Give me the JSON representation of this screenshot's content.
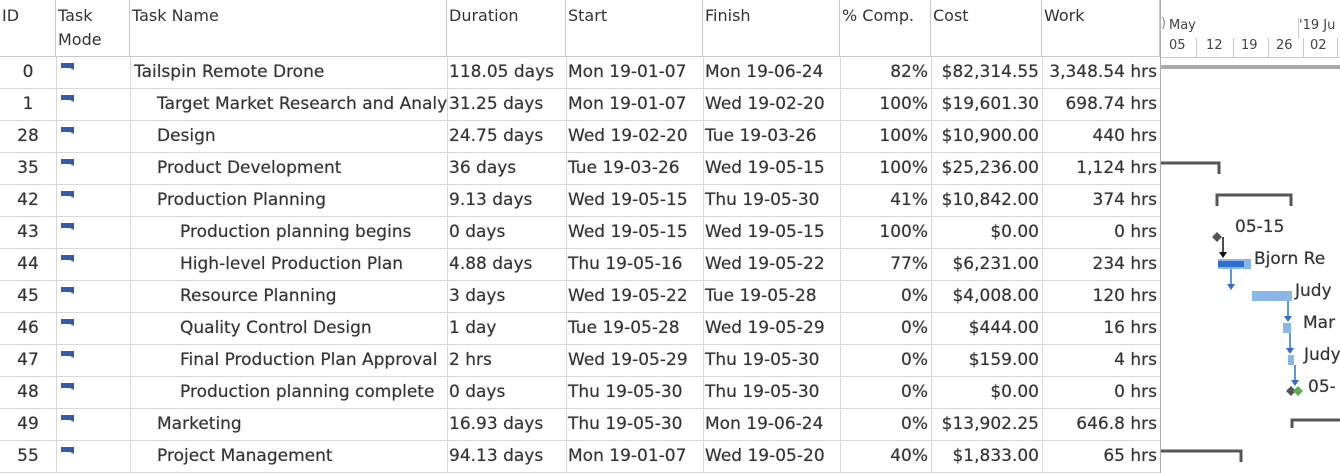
{
  "columns": {
    "id": "ID",
    "mode": "Task Mode",
    "name": "Task Name",
    "duration": "Duration",
    "start": "Start",
    "finish": "Finish",
    "pct": "% Comp.",
    "cost": "Cost",
    "work": "Work"
  },
  "timeline": {
    "month_may": "May",
    "month_next": "'19 Ju",
    "days": [
      "05",
      "12",
      "19",
      "26",
      "02"
    ]
  },
  "rows": [
    {
      "id": "0",
      "name": "Tailspin Remote Drone",
      "level": 0,
      "duration": "118.05 days",
      "start": "Mon 19-01-07",
      "finish": "Mon 19-06-24",
      "pct": "82%",
      "cost": "$82,314.55",
      "work": "3,348.54 hrs"
    },
    {
      "id": "1",
      "name": "Target Market Research and Analysis",
      "level": 1,
      "duration": "31.25 days",
      "start": "Mon 19-01-07",
      "finish": "Wed 19-02-20",
      "pct": "100%",
      "cost": "$19,601.30",
      "work": "698.74 hrs"
    },
    {
      "id": "28",
      "name": "Design",
      "level": 1,
      "duration": "24.75 days",
      "start": "Wed 19-02-20",
      "finish": "Tue 19-03-26",
      "pct": "100%",
      "cost": "$10,900.00",
      "work": "440 hrs"
    },
    {
      "id": "35",
      "name": "Product Development",
      "level": 1,
      "duration": "36 days",
      "start": "Tue 19-03-26",
      "finish": "Wed 19-05-15",
      "pct": "100%",
      "cost": "$25,236.00",
      "work": "1,124 hrs"
    },
    {
      "id": "42",
      "name": "Production Planning",
      "level": 1,
      "duration": "9.13 days",
      "start": "Wed 19-05-15",
      "finish": "Thu 19-05-30",
      "pct": "41%",
      "cost": "$10,842.00",
      "work": "374 hrs"
    },
    {
      "id": "43",
      "name": "Production planning begins",
      "level": 2,
      "duration": "0 days",
      "start": "Wed 19-05-15",
      "finish": "Wed 19-05-15",
      "pct": "100%",
      "cost": "$0.00",
      "work": "0 hrs"
    },
    {
      "id": "44",
      "name": "High-level Production Plan",
      "level": 2,
      "duration": "4.88 days",
      "start": "Thu 19-05-16",
      "finish": "Wed 19-05-22",
      "pct": "77%",
      "cost": "$6,231.00",
      "work": "234 hrs"
    },
    {
      "id": "45",
      "name": "Resource Planning",
      "level": 2,
      "duration": "3 days",
      "start": "Wed 19-05-22",
      "finish": "Tue 19-05-28",
      "pct": "0%",
      "cost": "$4,008.00",
      "work": "120 hrs"
    },
    {
      "id": "46",
      "name": "Quality Control Design",
      "level": 2,
      "duration": "1 day",
      "start": "Tue 19-05-28",
      "finish": "Wed 19-05-29",
      "pct": "0%",
      "cost": "$444.00",
      "work": "16 hrs"
    },
    {
      "id": "47",
      "name": "Final Production Plan Approval",
      "level": 2,
      "duration": "2 hrs",
      "start": "Wed 19-05-29",
      "finish": "Thu 19-05-30",
      "pct": "0%",
      "cost": "$159.00",
      "work": "4 hrs"
    },
    {
      "id": "48",
      "name": "Production planning complete",
      "level": 2,
      "duration": "0 days",
      "start": "Thu 19-05-30",
      "finish": "Thu 19-05-30",
      "pct": "0%",
      "cost": "$0.00",
      "work": "0 hrs"
    },
    {
      "id": "49",
      "name": "Marketing",
      "level": 1,
      "duration": "16.93 days",
      "start": "Thu 19-05-30",
      "finish": "Mon 19-06-24",
      "pct": "0%",
      "cost": "$13,902.25",
      "work": "646.8 hrs"
    },
    {
      "id": "55",
      "name": "Project Management",
      "level": 1,
      "duration": "94.13 days",
      "start": "Mon 19-01-07",
      "finish": "Wed 19-05-20",
      "pct": "40%",
      "cost": "$1,833.00",
      "work": "65 hrs"
    }
  ],
  "gantt_labels": {
    "milestone_43": "05-15",
    "res_44": "Bjorn Re",
    "res_45": "Judy",
    "res_46": "Mar",
    "res_47": "Judy",
    "milestone_48": "05-"
  },
  "colors": {
    "bar": "#8ab6e8",
    "bar_progress": "#2f6fcf",
    "summary": "#555555",
    "milestone": "#555555",
    "link": "#2f6fcf"
  }
}
